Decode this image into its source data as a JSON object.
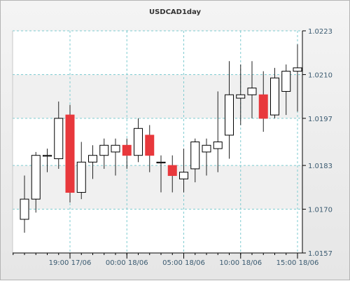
{
  "chart_data": {
    "type": "candlestick",
    "title": "USDCAD1day",
    "xlabel": "",
    "ylabel": "",
    "ylim": [
      1.0157,
      1.0223
    ],
    "y_ticks": [
      "1.0223",
      "1.0210",
      "1.0197",
      "1.0183",
      "1.0170",
      "1.0157"
    ],
    "x_ticks": [
      {
        "label": "19:00 17/06",
        "index": 4
      },
      {
        "label": "00:00 18/06",
        "index": 9
      },
      {
        "label": "05:00 18/06",
        "index": 14
      },
      {
        "label": "10:00 18/06",
        "index": 19
      },
      {
        "label": "15:00 18/06",
        "index": 24
      }
    ],
    "grid": true,
    "colors": {
      "up_fill": "#ffffff",
      "down_fill": "#e8383c",
      "candle_outline": "#000000",
      "wick": "#222222",
      "grid": "#7ecbd0",
      "band": "#ffffff",
      "axis": "#000000",
      "tick_label": "#3a5a70"
    },
    "candles": [
      {
        "open": 1.0167,
        "high": 1.018,
        "low": 1.0163,
        "close": 1.0173
      },
      {
        "open": 1.0173,
        "high": 1.0187,
        "low": 1.0169,
        "close": 1.0186
      },
      {
        "open": 1.0186,
        "high": 1.0188,
        "low": 1.0181,
        "close": 1.0186
      },
      {
        "open": 1.0185,
        "high": 1.0202,
        "low": 1.0182,
        "close": 1.0197
      },
      {
        "open": 1.0198,
        "high": 1.0201,
        "low": 1.0172,
        "close": 1.0175
      },
      {
        "open": 1.0175,
        "high": 1.019,
        "low": 1.0173,
        "close": 1.0184
      },
      {
        "open": 1.0184,
        "high": 1.0189,
        "low": 1.0179,
        "close": 1.0186
      },
      {
        "open": 1.0186,
        "high": 1.0191,
        "low": 1.0182,
        "close": 1.0189
      },
      {
        "open": 1.0187,
        "high": 1.0191,
        "low": 1.018,
        "close": 1.0189
      },
      {
        "open": 1.0189,
        "high": 1.0191,
        "low": 1.0182,
        "close": 1.0186
      },
      {
        "open": 1.0186,
        "high": 1.0197,
        "low": 1.0184,
        "close": 1.0194
      },
      {
        "open": 1.0192,
        "high": 1.0195,
        "low": 1.0181,
        "close": 1.0186
      },
      {
        "open": 1.0184,
        "high": 1.0186,
        "low": 1.0175,
        "close": 1.0184
      },
      {
        "open": 1.0183,
        "high": 1.0186,
        "low": 1.0175,
        "close": 1.018
      },
      {
        "open": 1.0179,
        "high": 1.0188,
        "low": 1.0175,
        "close": 1.0181
      },
      {
        "open": 1.0182,
        "high": 1.0191,
        "low": 1.0178,
        "close": 1.019
      },
      {
        "open": 1.0187,
        "high": 1.0191,
        "low": 1.018,
        "close": 1.0189
      },
      {
        "open": 1.0188,
        "high": 1.0205,
        "low": 1.0181,
        "close": 1.019
      },
      {
        "open": 1.0192,
        "high": 1.0214,
        "low": 1.0185,
        "close": 1.0204
      },
      {
        "open": 1.0203,
        "high": 1.0213,
        "low": 1.0195,
        "close": 1.0204
      },
      {
        "open": 1.0204,
        "high": 1.0214,
        "low": 1.0197,
        "close": 1.0206
      },
      {
        "open": 1.0204,
        "high": 1.0211,
        "low": 1.0193,
        "close": 1.0197
      },
      {
        "open": 1.0198,
        "high": 1.0212,
        "low": 1.0197,
        "close": 1.0209
      },
      {
        "open": 1.0205,
        "high": 1.0213,
        "low": 1.0198,
        "close": 1.0211
      },
      {
        "open": 1.0211,
        "high": 1.0219,
        "low": 1.0199,
        "close": 1.0212
      }
    ]
  }
}
